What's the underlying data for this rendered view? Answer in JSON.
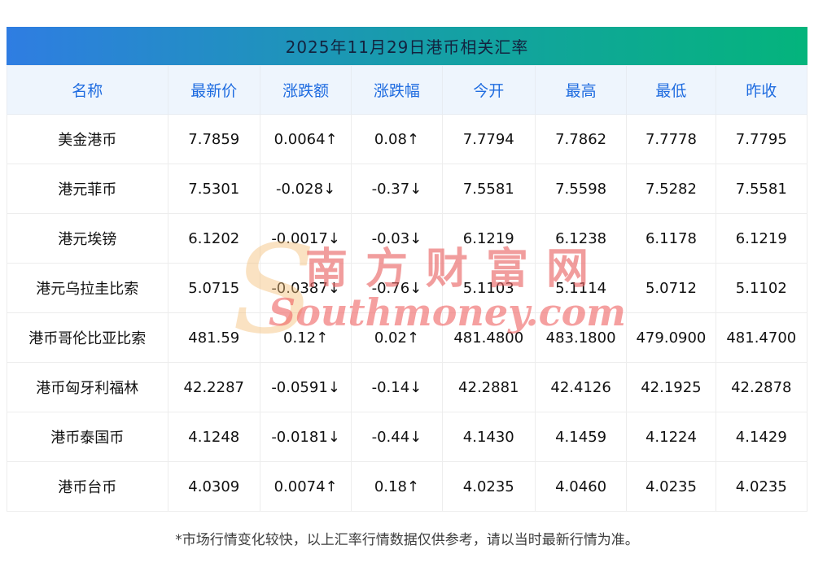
{
  "title": "2025年11月29日港币相关汇率",
  "chart_data": {
    "type": "table",
    "title": "2025年11月29日港币相关汇率",
    "columns": [
      "名称",
      "最新价",
      "涨跌额",
      "涨跌幅",
      "今开",
      "最高",
      "最低",
      "昨收"
    ],
    "rows": [
      {
        "name": "美金港币",
        "latest": "7.7859",
        "change": "0.0064↑",
        "pct": "0.08↑",
        "open": "7.7794",
        "high": "7.7862",
        "low": "7.7778",
        "prev": "7.7795",
        "trend": "up"
      },
      {
        "name": "港元菲币",
        "latest": "7.5301",
        "change": "-0.028↓",
        "pct": "-0.37↓",
        "open": "7.5581",
        "high": "7.5598",
        "low": "7.5282",
        "prev": "7.5581",
        "trend": "down"
      },
      {
        "name": "港元埃镑",
        "latest": "6.1202",
        "change": "-0.0017↓",
        "pct": "-0.03↓",
        "open": "6.1219",
        "high": "6.1238",
        "low": "6.1178",
        "prev": "6.1219",
        "trend": "down"
      },
      {
        "name": "港元乌拉圭比索",
        "latest": "5.0715",
        "change": "-0.0387↓",
        "pct": "-0.76↓",
        "open": "5.1103",
        "high": "5.1114",
        "low": "5.0712",
        "prev": "5.1102",
        "trend": "down"
      },
      {
        "name": "港币哥伦比亚比索",
        "latest": "481.59",
        "change": "0.12↑",
        "pct": "0.02↑",
        "open": "481.4800",
        "high": "483.1800",
        "low": "479.0900",
        "prev": "481.4700",
        "trend": "up"
      },
      {
        "name": "港币匈牙利福林",
        "latest": "42.2287",
        "change": "-0.0591↓",
        "pct": "-0.14↓",
        "open": "42.2881",
        "high": "42.4126",
        "low": "42.1925",
        "prev": "42.2878",
        "trend": "down"
      },
      {
        "name": "港币泰国币",
        "latest": "4.1248",
        "change": "-0.0181↓",
        "pct": "-0.44↓",
        "open": "4.1430",
        "high": "4.1459",
        "low": "4.1224",
        "prev": "4.1429",
        "trend": "down"
      },
      {
        "name": "港币台币",
        "latest": "4.0309",
        "change": "0.0074↑",
        "pct": "0.18↑",
        "open": "4.0235",
        "high": "4.0460",
        "low": "4.0235",
        "prev": "4.0235",
        "trend": "up"
      }
    ]
  },
  "footer": "*市场行情变化较快，以上汇率行情数据仅供参考，请以当时最新行情为准。",
  "watermark": {
    "s": "S",
    "cn": "南方财富网",
    "en": "Southmoney.com"
  },
  "colors": {
    "up": "#f53333",
    "down": "#0aa54e",
    "header_gradient_left": "#2f7de2",
    "header_gradient_right": "#04b47c",
    "column_header_text": "#1f6ce0"
  }
}
